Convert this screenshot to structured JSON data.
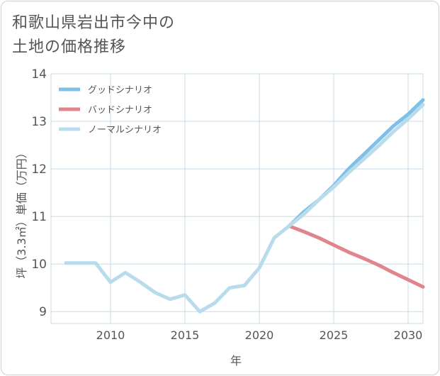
{
  "title_lines": [
    "和歌山県岩出市今中の",
    "土地の価格推移"
  ],
  "colors": {
    "good": "#7ec0e8",
    "bad": "#e0858e",
    "normal": "#b9dcec",
    "grid": "#c8dbe6",
    "text": "#555555"
  },
  "chart_data": {
    "type": "line",
    "title": "和歌山県岩出市今中の土地の価格推移",
    "xlabel": "年",
    "ylabel": "坪（3.3㎡）単価（万円）",
    "xlim": [
      2006,
      2031
    ],
    "ylim": [
      8.75,
      14
    ],
    "xticks": [
      2010,
      2015,
      2020,
      2025,
      2030
    ],
    "yticks": [
      9,
      10,
      11,
      12,
      13,
      14
    ],
    "legend_position": "top-left",
    "series": [
      {
        "name": "グッドシナリオ",
        "key": "good",
        "x": [
          2022,
          2023,
          2024,
          2025,
          2026,
          2027,
          2028,
          2029,
          2030,
          2031
        ],
        "y": [
          10.8,
          11.1,
          11.35,
          11.65,
          12.0,
          12.3,
          12.6,
          12.9,
          13.15,
          13.45
        ]
      },
      {
        "name": "バッドシナリオ",
        "key": "bad",
        "x": [
          2022,
          2023,
          2024,
          2025,
          2026,
          2027,
          2028,
          2029,
          2030,
          2031
        ],
        "y": [
          10.8,
          10.68,
          10.55,
          10.4,
          10.25,
          10.12,
          9.98,
          9.82,
          9.67,
          9.52
        ]
      },
      {
        "name": "ノーマルシナリオ",
        "key": "normal",
        "x": [
          2007,
          2008,
          2009,
          2010,
          2011,
          2012,
          2013,
          2014,
          2015,
          2016,
          2017,
          2018,
          2019,
          2020,
          2021,
          2022,
          2023,
          2024,
          2025,
          2026,
          2027,
          2028,
          2029,
          2030,
          2031
        ],
        "y": [
          10.02,
          10.02,
          10.02,
          9.62,
          9.82,
          9.62,
          9.4,
          9.26,
          9.35,
          9.0,
          9.18,
          9.5,
          9.55,
          9.92,
          10.55,
          10.8,
          11.05,
          11.35,
          11.62,
          11.92,
          12.2,
          12.48,
          12.78,
          13.05,
          13.35
        ]
      }
    ]
  }
}
